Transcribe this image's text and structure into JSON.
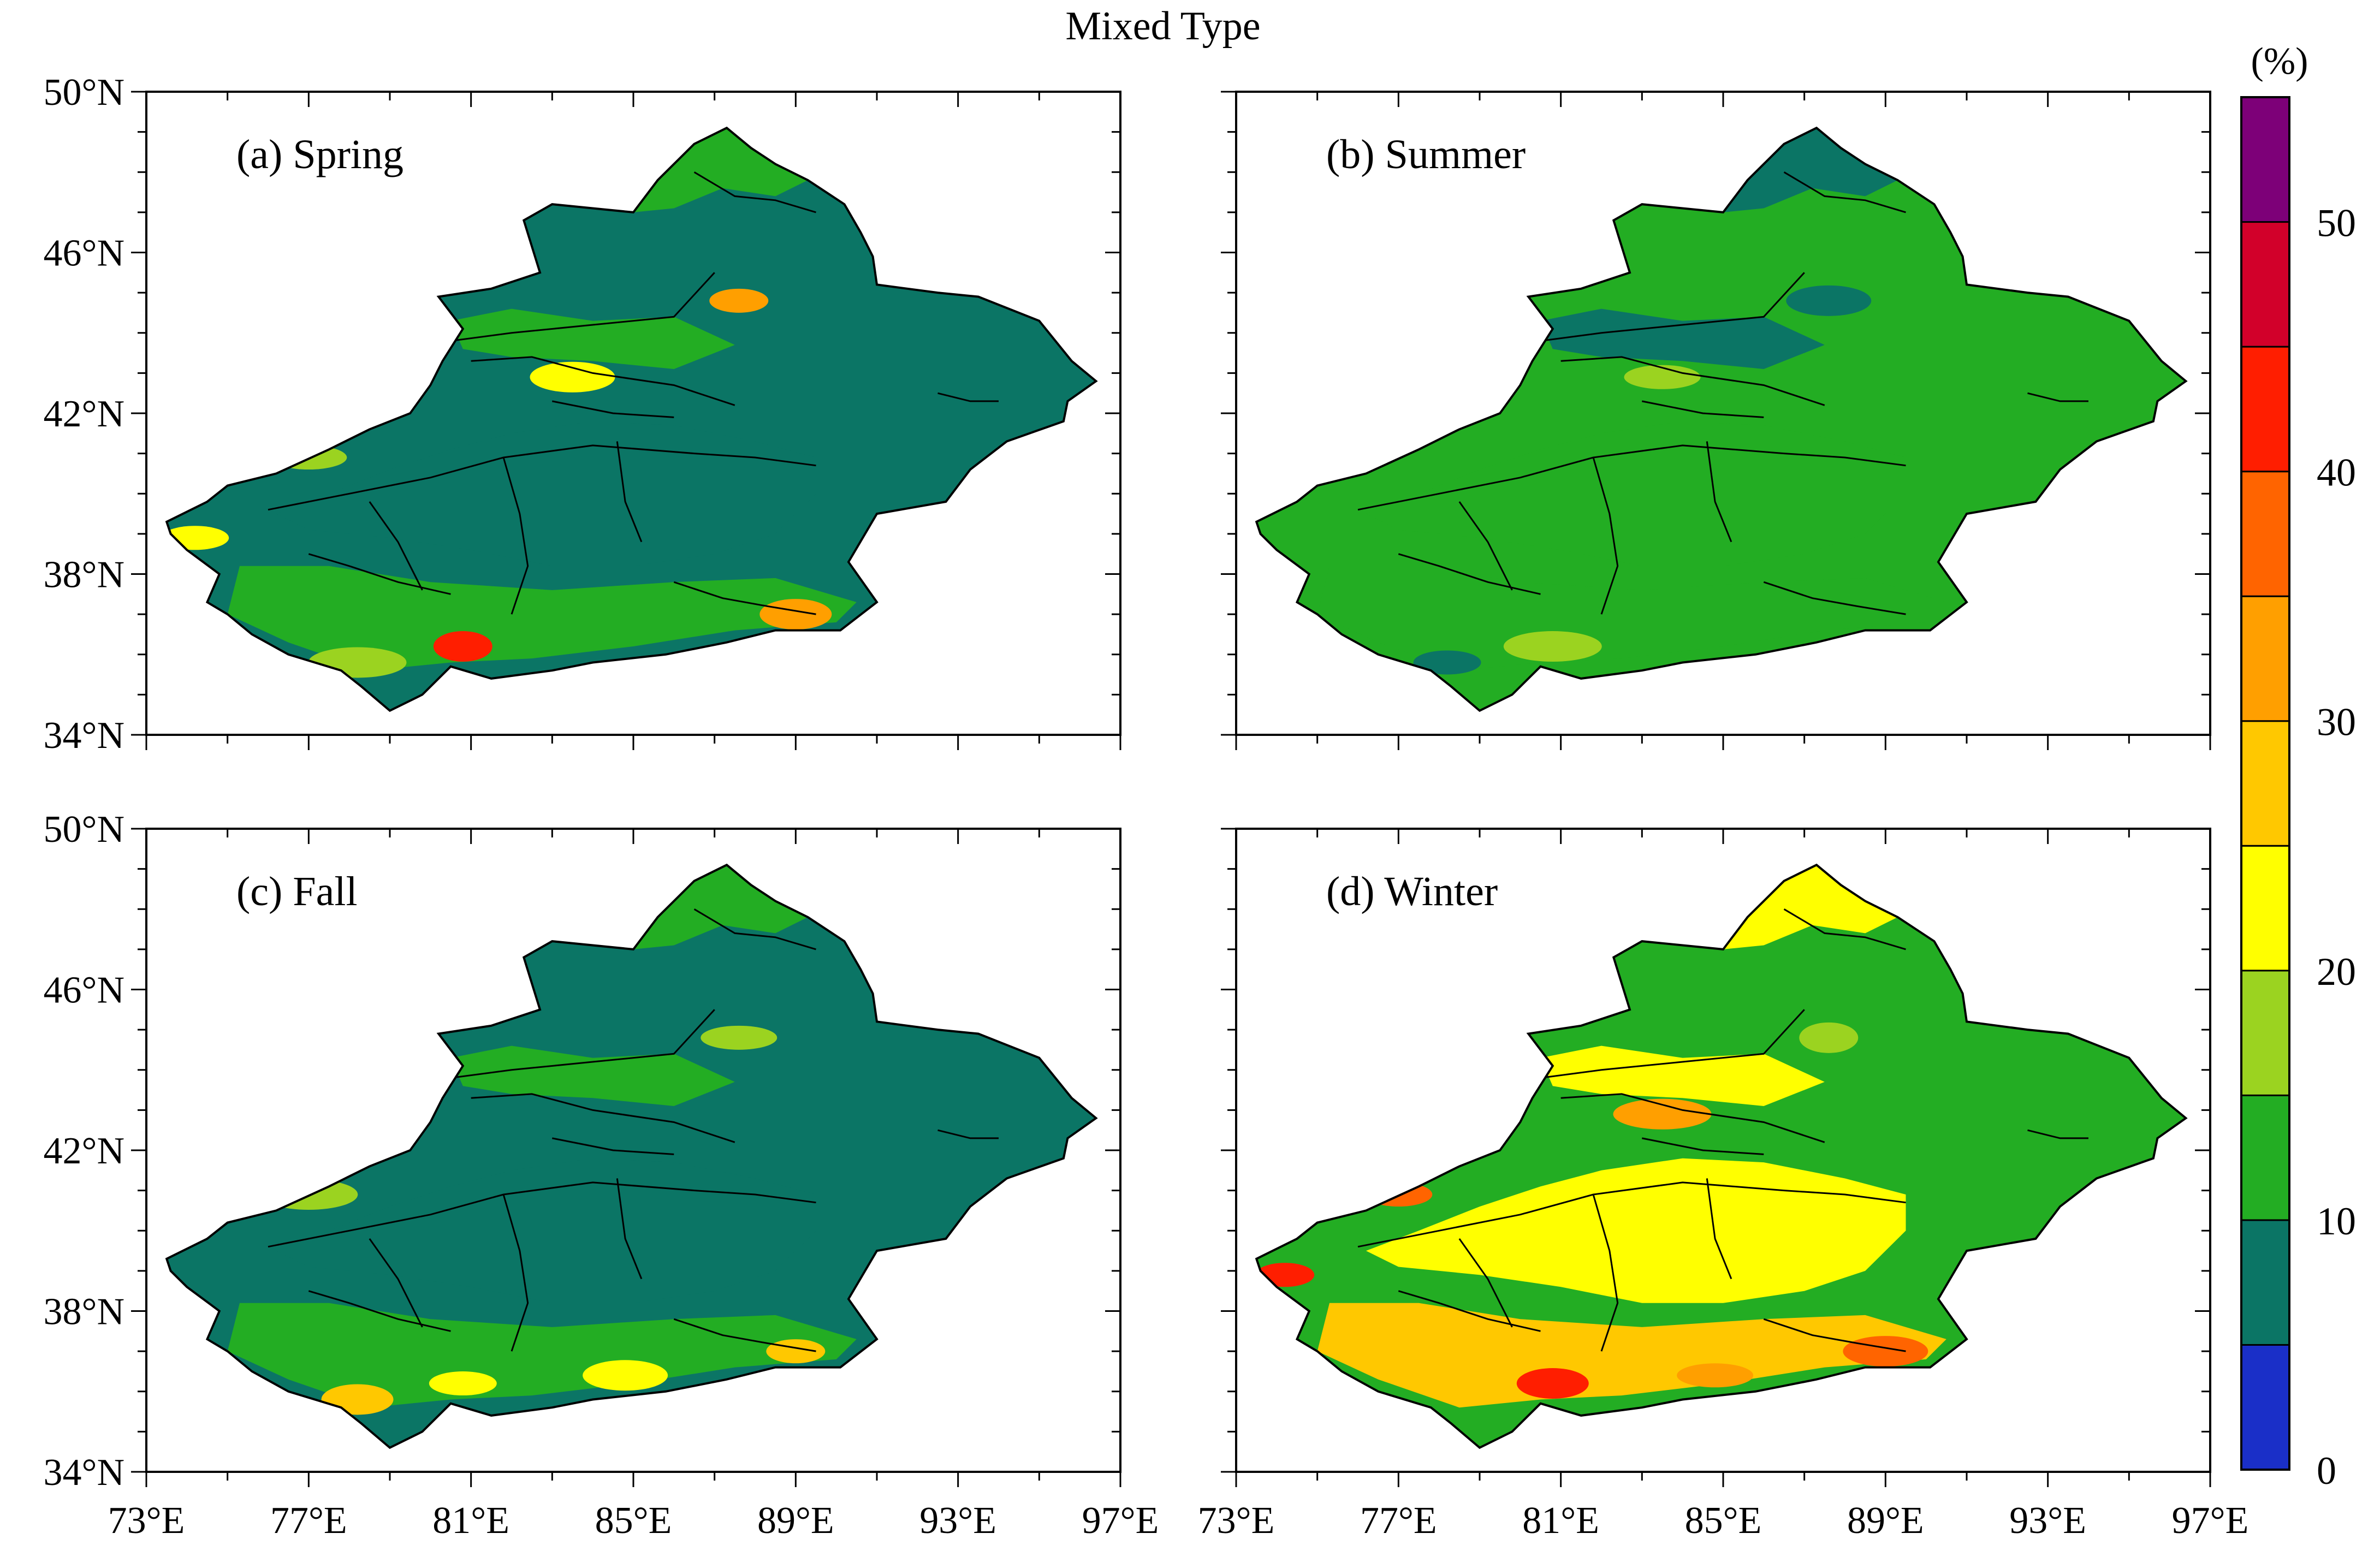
{
  "title": "Mixed Type",
  "panels": [
    {
      "id": "a",
      "label": "(a) Spring",
      "show_ylabels": true,
      "show_xlabels": false
    },
    {
      "id": "b",
      "label": "(b) Summer",
      "show_ylabels": false,
      "show_xlabels": false
    },
    {
      "id": "c",
      "label": "(c) Fall",
      "show_ylabels": true,
      "show_xlabels": true
    },
    {
      "id": "d",
      "label": "(d) Winter",
      "show_ylabels": false,
      "show_xlabels": true
    }
  ],
  "axes": {
    "lon_range": [
      73,
      97
    ],
    "lat_range": [
      34,
      50
    ],
    "lon_ticks": [
      73,
      77,
      81,
      85,
      89,
      93,
      97
    ],
    "lon_tick_labels": [
      "73°E",
      "77°E",
      "81°E",
      "85°E",
      "89°E",
      "93°E",
      "97°E"
    ],
    "lat_ticks": [
      34,
      38,
      42,
      46,
      50
    ],
    "lat_tick_labels": [
      "34°N",
      "38°N",
      "42°N",
      "46°N",
      "50°N"
    ]
  },
  "colorbar": {
    "unit_label": "(%)",
    "levels": [
      0,
      5,
      10,
      15,
      20,
      25,
      30,
      35,
      40,
      45,
      50,
      55
    ],
    "tick_labels": [
      "0",
      "10",
      "20",
      "30",
      "40",
      "50"
    ],
    "tick_values": [
      0,
      10,
      20,
      30,
      40,
      50
    ],
    "colors": [
      "#1a2fc8",
      "#0b7565",
      "#23ad23",
      "#9bd320",
      "#ffff00",
      "#ffc800",
      "#ff9f00",
      "#ff6400",
      "#ff1e00",
      "#d2002a",
      "#7d0078"
    ]
  },
  "region_colors": {
    "a": {
      "base": "#0b7565",
      "north": "#23ad23",
      "south": "#23ad23",
      "tarim": "#0b7565",
      "hotspots": [
        "#9bd320",
        "#ffff00",
        "#ff9f00",
        "#ff1e00"
      ]
    },
    "b": {
      "base": "#23ad23",
      "north": "#0b7565",
      "south": "#23ad23",
      "tarim": "#23ad23",
      "hotspots": [
        "#9bd320",
        "#0b7565"
      ]
    },
    "c": {
      "base": "#0b7565",
      "north": "#23ad23",
      "south": "#23ad23",
      "tarim": "#0b7565",
      "hotspots": [
        "#9bd320",
        "#ffff00",
        "#ffc800"
      ]
    },
    "d": {
      "base": "#23ad23",
      "north": "#ffff00",
      "south": "#ffc800",
      "tarim": "#ffff00",
      "hotspots": [
        "#ff9f00",
        "#ff6400",
        "#ff1e00",
        "#9bd320"
      ]
    }
  }
}
